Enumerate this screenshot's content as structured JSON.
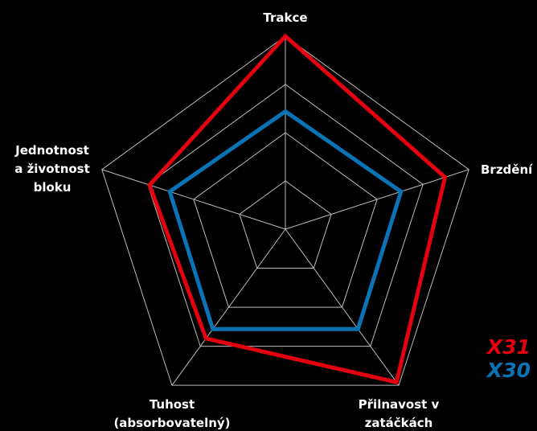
{
  "chart_data": {
    "type": "radar",
    "categories": [
      [
        "Trakce"
      ],
      [
        "Brzdění"
      ],
      [
        "Přilnavost v",
        "zatáčkách"
      ],
      [
        "Tuhost",
        "(absorbovatelný)"
      ],
      [
        "Jednotnost",
        "a životnost",
        "bloku"
      ]
    ],
    "series": [
      {
        "name": "X31",
        "color": "#e3000f",
        "values": [
          100,
          87,
          98,
          70,
          74
        ]
      },
      {
        "name": "X30",
        "color": "#0a73b5",
        "values": [
          61,
          63,
          64,
          64,
          63
        ]
      }
    ],
    "rlim": [
      0,
      100
    ],
    "rticks": [
      25,
      50,
      75,
      100
    ],
    "grid": true,
    "legend": "lower right"
  }
}
